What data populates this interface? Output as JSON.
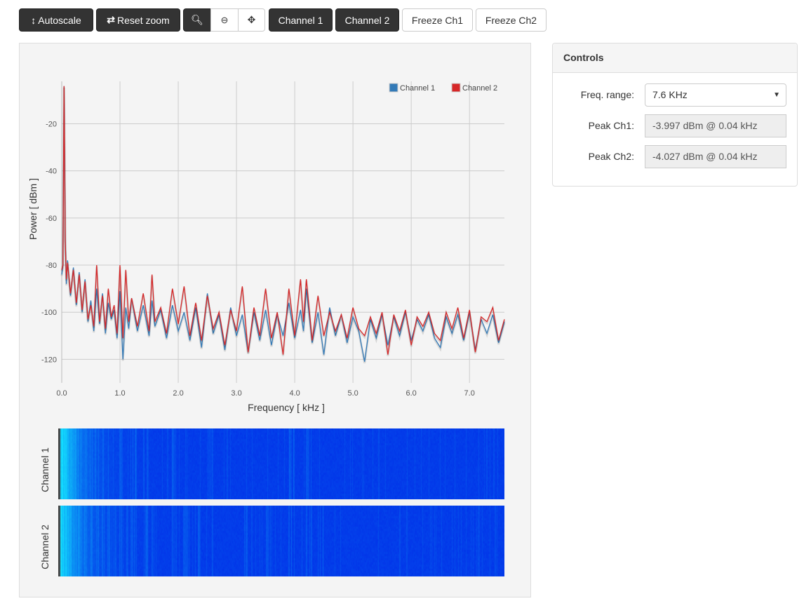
{
  "toolbar": {
    "autoscale": "Autoscale",
    "reset_zoom": "Reset zoom",
    "zoom_in_icon": "zoom-in-icon",
    "zoom_out_icon": "zoom-out-icon",
    "pan_icon": "move-icon",
    "channel1": "Channel 1",
    "channel2": "Channel 2",
    "freeze_ch1": "Freeze Ch1",
    "freeze_ch2": "Freeze Ch2"
  },
  "spectrogram": {
    "ch1_label": "Channel 1",
    "ch2_label": "Channel 2"
  },
  "controls": {
    "title": "Controls",
    "freq_range_label": "Freq. range:",
    "freq_range_value": "7.6 KHz",
    "peak_ch1_label": "Peak Ch1:",
    "peak_ch1_value": "-3.997 dBm @ 0.04 kHz",
    "peak_ch2_label": "Peak Ch2:",
    "peak_ch2_value": "-4.027 dBm @ 0.04 kHz"
  },
  "chart_data": {
    "type": "line",
    "xlabel": "Frequency [ kHz ]",
    "ylabel": "Power [ dBm ]",
    "xlim": [
      0,
      7.6
    ],
    "ylim": [
      -130,
      -2
    ],
    "xticks": [
      "0.0",
      "1.0",
      "2.0",
      "3.0",
      "4.0",
      "5.0",
      "6.0",
      "7.0"
    ],
    "yticks": [
      "-20",
      "-40",
      "-60",
      "-80",
      "-100",
      "-120"
    ],
    "grid": true,
    "legend": "top-right",
    "x": [
      0,
      0.02,
      0.04,
      0.06,
      0.08,
      0.1,
      0.15,
      0.2,
      0.25,
      0.3,
      0.35,
      0.4,
      0.45,
      0.5,
      0.55,
      0.6,
      0.65,
      0.7,
      0.75,
      0.8,
      0.85,
      0.9,
      0.95,
      1.0,
      1.05,
      1.1,
      1.15,
      1.2,
      1.3,
      1.4,
      1.5,
      1.55,
      1.6,
      1.7,
      1.8,
      1.9,
      2.0,
      2.1,
      2.2,
      2.3,
      2.4,
      2.5,
      2.6,
      2.7,
      2.8,
      2.9,
      3.0,
      3.1,
      3.2,
      3.3,
      3.4,
      3.5,
      3.6,
      3.7,
      3.8,
      3.9,
      4.0,
      4.1,
      4.15,
      4.2,
      4.3,
      4.4,
      4.5,
      4.6,
      4.7,
      4.8,
      4.9,
      5.0,
      5.1,
      5.2,
      5.3,
      5.4,
      5.5,
      5.6,
      5.7,
      5.8,
      5.9,
      6.0,
      6.1,
      6.2,
      6.3,
      6.4,
      6.5,
      6.6,
      6.7,
      6.8,
      6.9,
      7.0,
      7.1,
      7.2,
      7.3,
      7.4,
      7.5,
      7.6
    ],
    "series": [
      {
        "name": "Channel 1",
        "color": "#337ab7",
        "values": [
          -84,
          -80,
          -4,
          -69,
          -88,
          -78,
          -93,
          -81,
          -97,
          -83,
          -100,
          -86,
          -104,
          -95,
          -108,
          -90,
          -105,
          -92,
          -109,
          -96,
          -103,
          -99,
          -111,
          -91,
          -120,
          -98,
          -107,
          -94,
          -108,
          -97,
          -110,
          -95,
          -106,
          -99,
          -111,
          -97,
          -108,
          -100,
          -112,
          -98,
          -115,
          -92,
          -109,
          -101,
          -116,
          -98,
          -110,
          -101,
          -117,
          -100,
          -112,
          -99,
          -114,
          -101,
          -110,
          -96,
          -111,
          -99,
          -108,
          -90,
          -113,
          -100,
          -118,
          -98,
          -110,
          -101,
          -113,
          -102,
          -108,
          -121,
          -103,
          -111,
          -101,
          -114,
          -102,
          -110,
          -100,
          -112,
          -103,
          -108,
          -101,
          -111,
          -115,
          -102,
          -109,
          -101,
          -112,
          -100,
          -116,
          -103,
          -109,
          -101,
          -113,
          -104
        ]
      },
      {
        "name": "Channel 2",
        "color": "#d62728",
        "values": [
          -82,
          -80,
          -4,
          -70,
          -86,
          -79,
          -92,
          -82,
          -96,
          -84,
          -99,
          -87,
          -103,
          -97,
          -106,
          -80,
          -104,
          -93,
          -107,
          -90,
          -102,
          -97,
          -109,
          -80,
          -111,
          -82,
          -104,
          -94,
          -106,
          -92,
          -108,
          -84,
          -104,
          -98,
          -109,
          -90,
          -105,
          -89,
          -110,
          -96,
          -112,
          -93,
          -107,
          -100,
          -114,
          -99,
          -108,
          -89,
          -117,
          -98,
          -110,
          -90,
          -111,
          -100,
          -118,
          -90,
          -110,
          -86,
          -104,
          -86,
          -112,
          -93,
          -110,
          -100,
          -108,
          -101,
          -111,
          -98,
          -107,
          -110,
          -102,
          -109,
          -100,
          -118,
          -101,
          -108,
          -99,
          -114,
          -102,
          -106,
          -100,
          -109,
          -112,
          -100,
          -107,
          -98,
          -111,
          -99,
          -117,
          -102,
          -104,
          -98,
          -112,
          -103
        ]
      }
    ]
  }
}
